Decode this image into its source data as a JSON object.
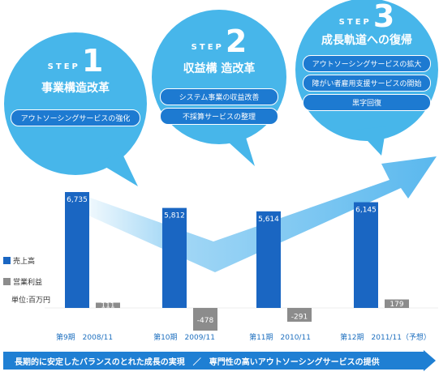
{
  "steps": [
    {
      "word": "STEP",
      "number": "1",
      "title": "事業構造改革",
      "items": [
        "アウトソーシングサービスの強化"
      ]
    },
    {
      "word": "STEP",
      "number": "2",
      "title": "収益構 造改革",
      "items": [
        "システム事業の収益改善",
        "不採算サービスの整理"
      ]
    },
    {
      "word": "STEP",
      "number": "3",
      "title": "成長軌道への復帰",
      "items": [
        "アウトソーシングサービスの拡大",
        "障がい者雇用支援サービスの開始",
        "黒字回復"
      ]
    }
  ],
  "legend": {
    "sales": "売上高",
    "profit": "営業利益"
  },
  "unit_label": "単位:百万円",
  "banner": "長期的に安定したバランスのとれた成長の実現　／　専門性の高いアウトソーシングサービスの提供",
  "colors": {
    "sales": "#1a66c2",
    "profit": "#8c8c8c",
    "bubble": "#47b6ea",
    "arrow": "#5ab8ee",
    "banner": "#1f7fd3"
  },
  "chart_data": {
    "type": "bar",
    "categories": [
      "第9期　2008/11",
      "第10期　2009/11",
      "第11期　2010/11",
      "第12期　2011/11（予想）"
    ],
    "series": [
      {
        "name": "売上高",
        "values": [
          6735,
          5812,
          5614,
          6145
        ]
      },
      {
        "name": "営業利益",
        "values": [
          111,
          -478,
          -291,
          179
        ]
      }
    ],
    "data_labels": {
      "sales": [
        "6,735",
        "5,812",
        "5,614",
        "6,145"
      ],
      "profit": [
        "111",
        "-478",
        "-291",
        "179"
      ]
    },
    "xlabel": "",
    "ylabel": "",
    "legend_position": "left",
    "grid": false
  }
}
